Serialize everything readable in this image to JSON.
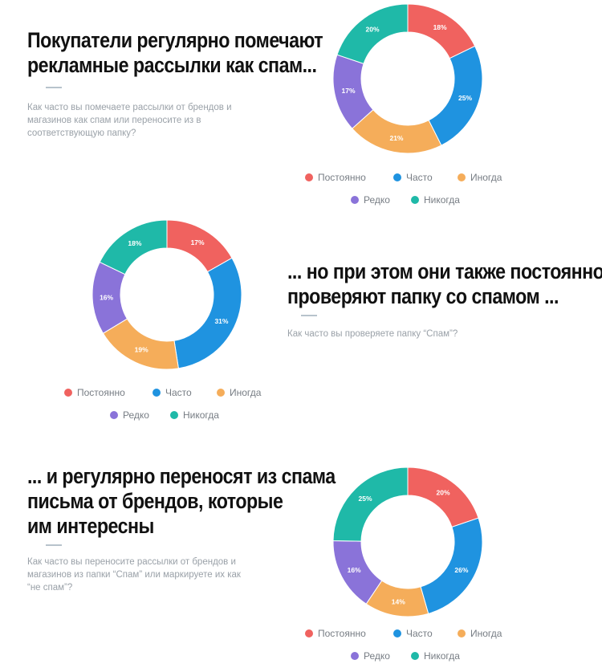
{
  "colors": {
    "postoyanno": "#f0625f",
    "chasto": "#1f93e0",
    "inogda": "#f5ad5a",
    "redko": "#8a73d9",
    "nikogda": "#1fb9a8"
  },
  "sections": [
    {
      "heading_lines": [
        "Покупатели регулярно помечают",
        "рекламные рассылки как спам..."
      ],
      "question_lines": [
        "Как часто вы помечаете рассылки от брендов и",
        "магазинов как спам или переносите из в",
        "соответствующую папку?"
      ]
    },
    {
      "heading_lines": [
        "... но при этом они также постоянно",
        "проверяют папку со спамом ..."
      ],
      "question_lines": [
        "Как часто вы проверяете папку “Спам”?"
      ]
    },
    {
      "heading_lines": [
        "... и регулярно переносят из спама",
        "письма от брендов, которые",
        "им интересны"
      ],
      "question_lines": [
        "Как часто вы переносите рассылки от брендов и",
        "магазинов из папки “Спам” или маркируете их как",
        "“не спам”?"
      ]
    }
  ],
  "legend": {
    "row1": [
      "Постоянно",
      "Часто",
      "Иногда"
    ],
    "row2": [
      "Редко",
      "Никогда"
    ],
    "color_keys_row1": [
      "postoyanno",
      "chasto",
      "inogda"
    ],
    "color_keys_row2": [
      "redko",
      "nikogda"
    ]
  },
  "chart_data": [
    {
      "type": "pie",
      "style": "donut",
      "categories": [
        "Постоянно",
        "Часто",
        "Иногда",
        "Редко",
        "Никогда"
      ],
      "values": [
        18,
        25,
        21,
        17,
        20
      ],
      "labels": [
        "18%",
        "25%",
        "21%",
        "17%",
        "20%"
      ],
      "legend_position": "bottom"
    },
    {
      "type": "pie",
      "style": "donut",
      "categories": [
        "Постоянно",
        "Часто",
        "Иногда",
        "Редко",
        "Никогда"
      ],
      "values": [
        17,
        31,
        19,
        16,
        18
      ],
      "labels": [
        "17%",
        "31%",
        "19%",
        "16%",
        "18%"
      ],
      "legend_position": "bottom"
    },
    {
      "type": "pie",
      "style": "donut",
      "categories": [
        "Постоянно",
        "Часто",
        "Иногда",
        "Редко",
        "Никогда"
      ],
      "values": [
        20,
        26,
        14,
        16,
        25
      ],
      "labels": [
        "20%",
        "26%",
        "14%",
        "16%",
        "25%"
      ],
      "legend_position": "bottom"
    }
  ]
}
